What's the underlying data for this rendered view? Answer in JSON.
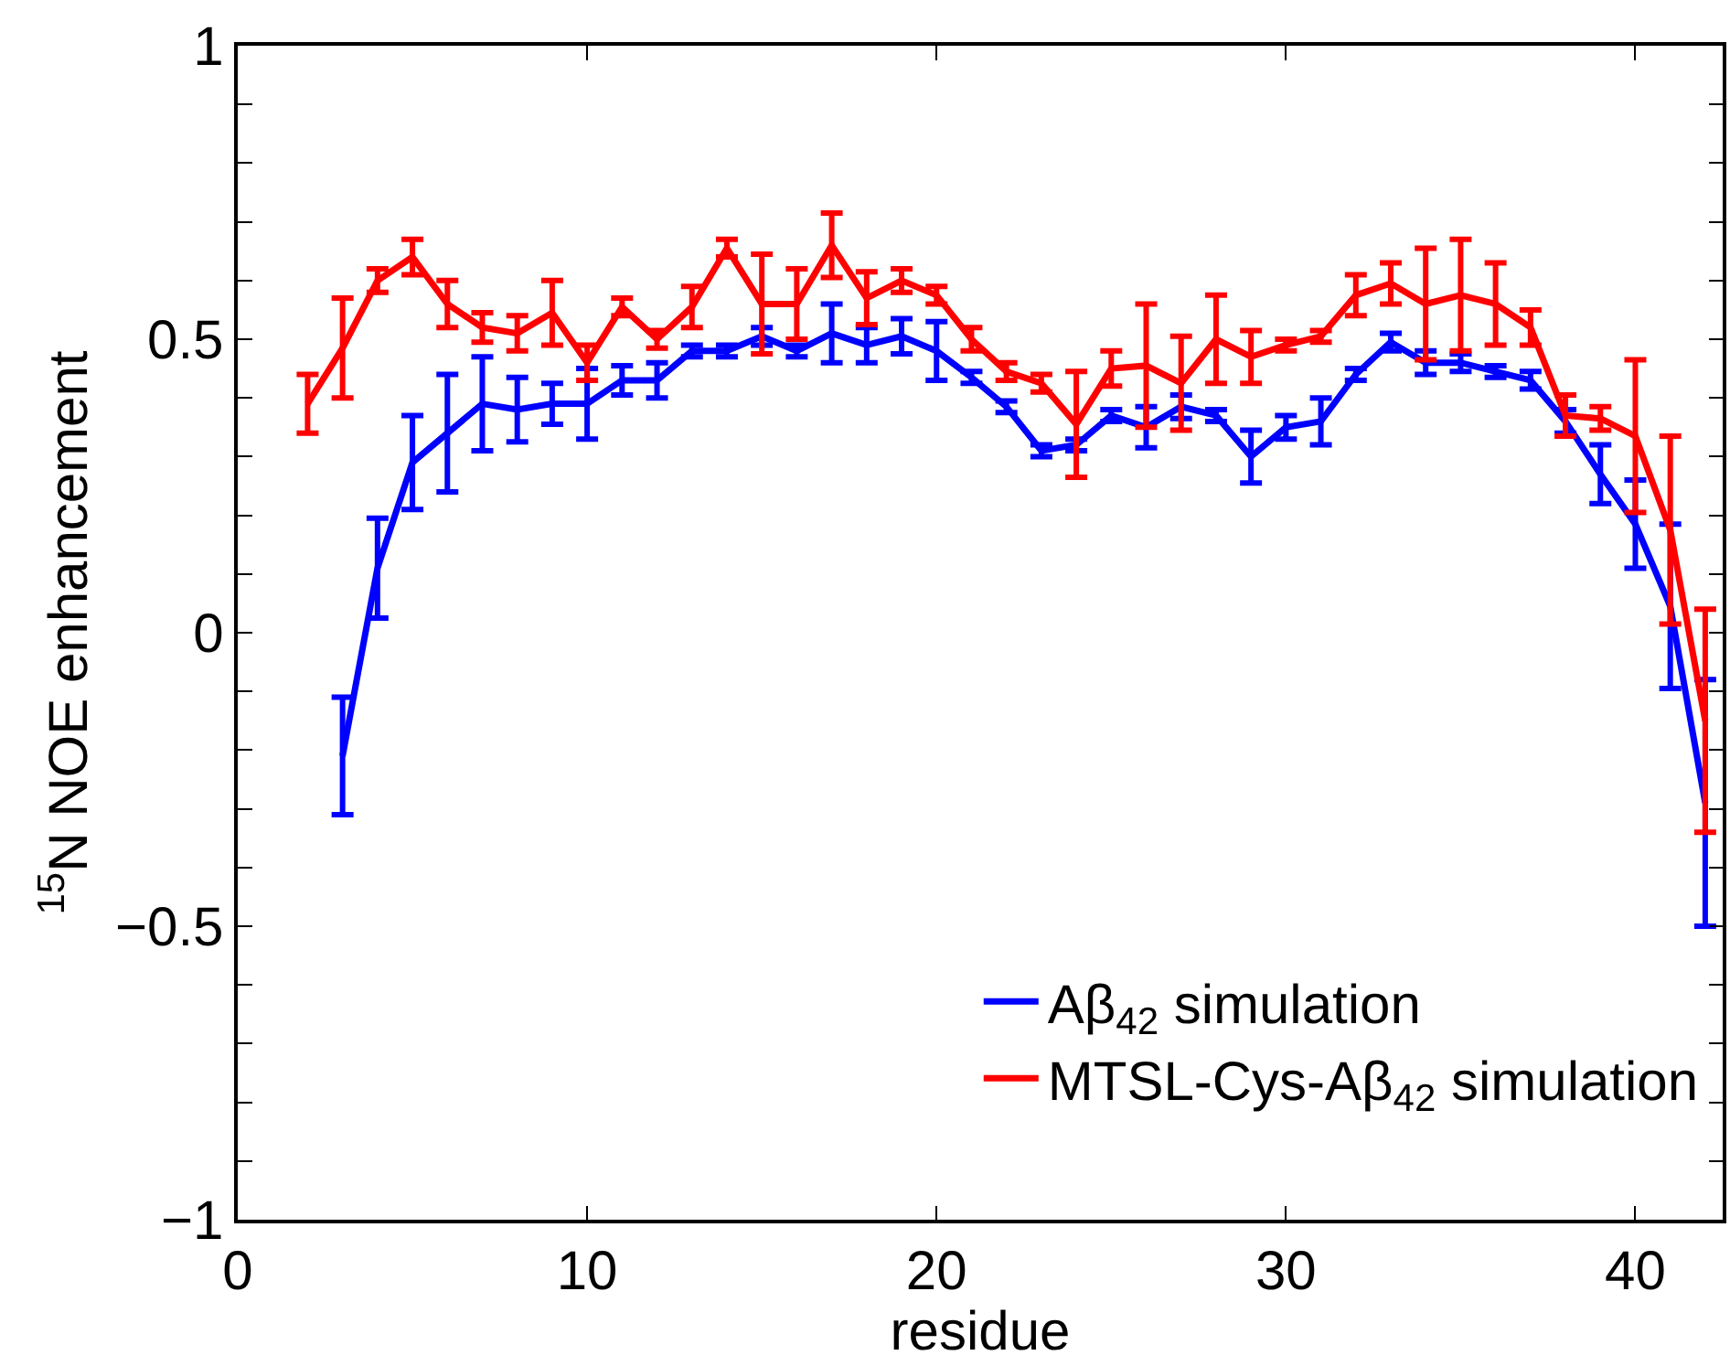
{
  "chart_data": {
    "type": "line",
    "xlabel": "residue",
    "ylabel": "$^{15}$N NOE enhancement",
    "xlim": [
      0,
      42.5
    ],
    "xticks": [
      0,
      10,
      20,
      30,
      40
    ],
    "ylim": [
      -1,
      1
    ],
    "yticks": [
      -1,
      {
        "value": -0.9,
        "label": null
      },
      {
        "value": -0.8,
        "label": null
      },
      {
        "value": -0.7,
        "label": null
      },
      {
        "value": -0.6,
        "label": null
      },
      -0.5,
      {
        "value": -0.4,
        "label": null
      },
      {
        "value": -0.3,
        "label": null
      },
      {
        "value": -0.2,
        "label": null
      },
      {
        "value": -0.1,
        "label": null
      },
      0,
      {
        "value": 0.1,
        "label": null
      },
      {
        "value": 0.2,
        "label": null
      },
      {
        "value": 0.3,
        "label": null
      },
      {
        "value": 0.4,
        "label": null
      },
      0.5,
      {
        "value": 0.6,
        "label": null
      },
      {
        "value": 0.7,
        "label": null
      },
      {
        "value": 0.8,
        "label": null
      },
      {
        "value": 0.9,
        "label": null
      },
      1
    ],
    "legend": "bottom right",
    "marker": "none",
    "line_style": "solid",
    "series": [
      {
        "name": "Aβ$_{42}$ simulation",
        "color": "#0000ff",
        "x": [
          3,
          4,
          5,
          6,
          7,
          8,
          9,
          10,
          11,
          12,
          13,
          14,
          15,
          16,
          17,
          18,
          19,
          20,
          21,
          22,
          23,
          24,
          25,
          26,
          27,
          28,
          29,
          30,
          31,
          32,
          33,
          34,
          35,
          36,
          37,
          38,
          39,
          40,
          41,
          42
        ],
        "values": [
          -0.21,
          0.11,
          0.29,
          0.34,
          0.39,
          0.38,
          0.39,
          0.39,
          0.43,
          0.43,
          0.48,
          0.48,
          0.505,
          0.48,
          0.51,
          0.49,
          0.505,
          0.48,
          0.435,
          0.385,
          0.31,
          0.32,
          0.37,
          0.35,
          0.385,
          0.37,
          0.3,
          0.35,
          0.36,
          0.44,
          0.495,
          0.46,
          0.46,
          0.445,
          0.43,
          0.36,
          0.27,
          0.185,
          0.045,
          -0.29
        ],
        "errors": [
          0.1,
          0.085,
          0.08,
          0.1,
          0.08,
          0.055,
          0.035,
          0.06,
          0.025,
          0.03,
          0.01,
          0.01,
          0.015,
          0.01,
          0.05,
          0.03,
          0.03,
          0.05,
          0.01,
          0.01,
          0.01,
          0.01,
          0.01,
          0.035,
          0.02,
          0.01,
          0.045,
          0.02,
          0.04,
          0.01,
          0.015,
          0.02,
          0.015,
          0.01,
          0.015,
          0.02,
          0.05,
          0.075,
          0.14,
          0.21
        ]
      },
      {
        "name": "MTSL-Cys-Aβ$_{42}$ simulation",
        "color": "#ff0000",
        "x": [
          2,
          3,
          4,
          5,
          6,
          7,
          8,
          9,
          10,
          11,
          12,
          13,
          14,
          15,
          16,
          17,
          18,
          19,
          20,
          21,
          22,
          23,
          24,
          25,
          26,
          27,
          28,
          29,
          30,
          31,
          32,
          33,
          34,
          35,
          36,
          37,
          38,
          39,
          40,
          41,
          42
        ],
        "values": [
          0.39,
          0.485,
          0.6,
          0.64,
          0.56,
          0.52,
          0.51,
          0.545,
          0.46,
          0.555,
          0.5,
          0.555,
          0.655,
          0.56,
          0.56,
          0.66,
          0.57,
          0.6,
          0.575,
          0.5,
          0.445,
          0.425,
          0.355,
          0.45,
          0.455,
          0.425,
          0.5,
          0.47,
          0.49,
          0.505,
          0.575,
          0.595,
          0.56,
          0.575,
          0.56,
          0.52,
          0.37,
          0.365,
          0.335,
          0.175,
          -0.15
        ],
        "errors": [
          0.05,
          0.085,
          0.02,
          0.03,
          0.04,
          0.025,
          0.03,
          0.055,
          0.03,
          0.015,
          0.015,
          0.035,
          0.015,
          0.085,
          0.06,
          0.055,
          0.045,
          0.02,
          0.015,
          0.02,
          0.015,
          0.015,
          0.09,
          0.03,
          0.105,
          0.08,
          0.075,
          0.045,
          0.01,
          0.01,
          0.035,
          0.035,
          0.095,
          0.095,
          0.07,
          0.03,
          0.035,
          0.02,
          0.13,
          0.16,
          0.19
        ]
      }
    ]
  }
}
